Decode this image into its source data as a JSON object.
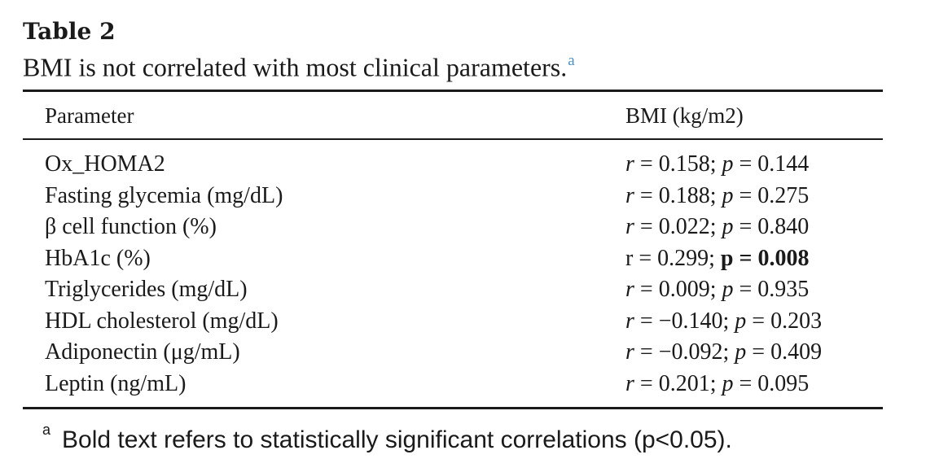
{
  "table": {
    "label": "Table 2",
    "caption": "BMI is not correlated with most clinical parameters.",
    "caption_note_marker": "a",
    "columns": [
      "Parameter",
      "BMI (kg/m2)"
    ],
    "rows": [
      {
        "parameter": "Ox_HOMA2",
        "r_label": "r",
        "r": "0.158",
        "p_label": "p",
        "p": "0.144",
        "significant": false
      },
      {
        "parameter": "Fasting glycemia (mg/dL)",
        "r_label": "r",
        "r": "0.188",
        "p_label": "p",
        "p": "0.275",
        "significant": false
      },
      {
        "parameter": "β cell function (%)",
        "r_label": "r",
        "r": "0.022",
        "p_label": "p",
        "p": "0.840",
        "significant": false
      },
      {
        "parameter": "HbA1c (%)",
        "r_label": "r",
        "r": "0.299",
        "p_label": "p",
        "p": "0.008",
        "significant": true
      },
      {
        "parameter": "Triglycerides (mg/dL)",
        "r_label": "r",
        "r": "0.009",
        "p_label": "p",
        "p": "0.935",
        "significant": false
      },
      {
        "parameter": "HDL cholesterol (mg/dL)",
        "r_label": "r",
        "r": "−0.140",
        "p_label": "p",
        "p": "0.203",
        "significant": false
      },
      {
        "parameter": "Adiponectin (μg/mL)",
        "r_label": "r",
        "r": "−0.092",
        "p_label": "p",
        "p": "0.409",
        "significant": false
      },
      {
        "parameter": "Leptin (ng/mL)",
        "r_label": "r",
        "r": "0.201",
        "p_label": "p",
        "p": "0.095",
        "significant": false
      }
    ],
    "footnote": {
      "marker": "a",
      "text": "Bold text refers to statistically significant correlations (p<0.05)."
    }
  },
  "colors": {
    "text": "#1a1a1a",
    "link": "#4a8fc6"
  }
}
